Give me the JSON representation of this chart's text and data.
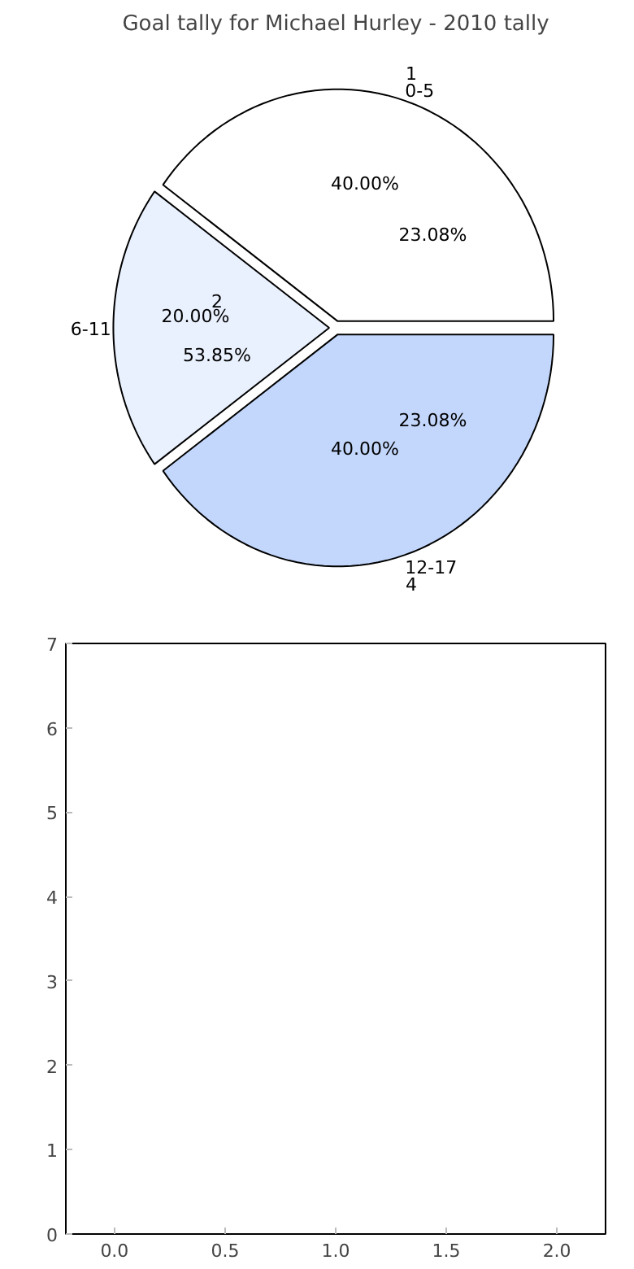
{
  "chart_data": [
    {
      "type": "pie",
      "title": "Goal tally for Michael Hurley - 2010 tally",
      "categories": [
        "0-5",
        "6-11",
        "12-17"
      ],
      "values": [
        40,
        20,
        40
      ],
      "colors": [
        "#ffffff",
        "#eaf1fe",
        "#c3d7fc"
      ],
      "value_labels": [
        "40.00%",
        "20.00%",
        "40.00%"
      ],
      "annotations": [
        "1",
        "2",
        "4",
        "23.08%",
        "53.85%",
        "23.08%"
      ]
    },
    {
      "type": "scatter",
      "xlim": [
        -0.22,
        2.22
      ],
      "xticks": [
        {
          "value": 0,
          "label": "0.0"
        },
        {
          "value": 0.5,
          "label": "0.5"
        },
        {
          "value": 1,
          "label": "1.0"
        },
        {
          "value": 1.5,
          "label": "1.5"
        },
        {
          "value": 2,
          "label": "2.0"
        }
      ],
      "ylim": [
        0,
        7
      ],
      "yticks": [
        0,
        1,
        2,
        3,
        4,
        5,
        6,
        7
      ]
    }
  ]
}
